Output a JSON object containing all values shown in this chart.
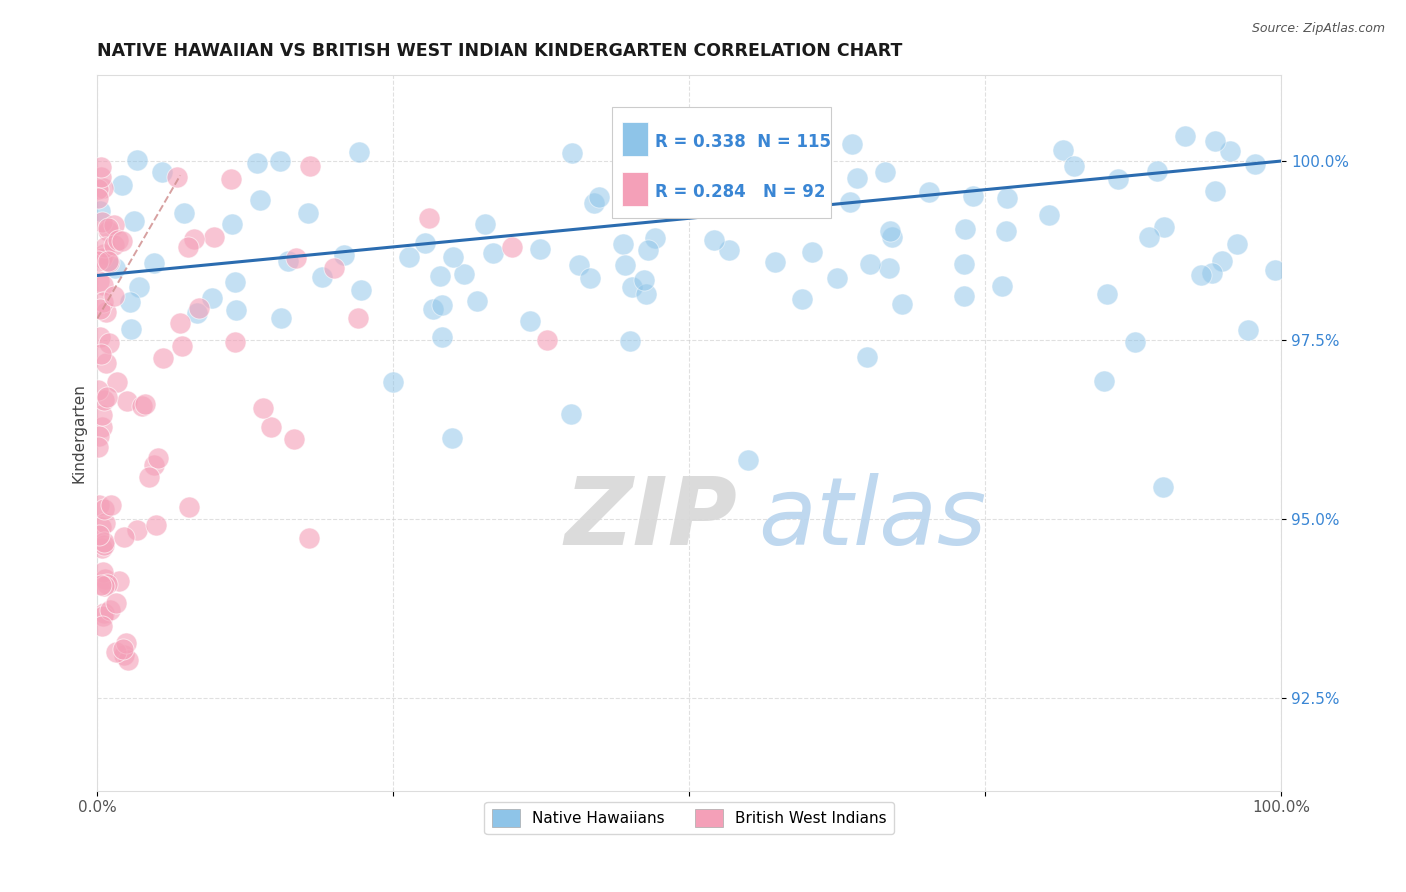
{
  "title": "NATIVE HAWAIIAN VS BRITISH WEST INDIAN KINDERGARTEN CORRELATION CHART",
  "source": "Source: ZipAtlas.com",
  "ylabel": "Kindergarten",
  "ytick_values": [
    92.5,
    95.0,
    97.5,
    100.0
  ],
  "xmin": 0.0,
  "xmax": 100.0,
  "ymin": 91.2,
  "ymax": 101.2,
  "blue_color": "#8ec4e8",
  "pink_color": "#f4a0b8",
  "blue_line_color": "#2b6cb0",
  "pink_line_color": "#e08888",
  "R_blue": 0.338,
  "N_blue": 115,
  "R_pink": 0.284,
  "N_pink": 92,
  "legend_label_blue": "Native Hawaiians",
  "legend_label_pink": "British West Indians",
  "watermark_zip": "ZIP",
  "watermark_atlas": "atlas",
  "background": "#ffffff",
  "grid_color": "#cccccc",
  "tick_color_y": "#3a86d4",
  "tick_color_x": "#555555"
}
